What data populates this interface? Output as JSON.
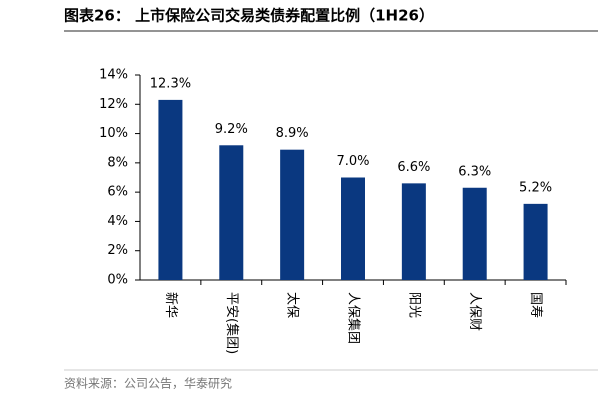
{
  "chart_data": {
    "type": "bar",
    "title": "图表26： 上市保险公司交易类债券配置比例（1H26）",
    "source": "资料来源：公司公告，华泰研究",
    "categories": [
      "新华",
      "平安(集团)",
      "太保",
      "人保集团",
      "阳光",
      "人保财",
      "国寿"
    ],
    "values": [
      12.3,
      9.2,
      8.9,
      7.0,
      6.6,
      6.3,
      5.2
    ],
    "value_labels": [
      "12.3%",
      "9.2%",
      "8.9%",
      "7.0%",
      "6.6%",
      "6.3%",
      "5.2%"
    ],
    "color": "#0a3880",
    "ylim": [
      0,
      14
    ],
    "yticks": [
      {
        "value": 0,
        "label": "0%"
      },
      {
        "value": 2,
        "label": "2%"
      },
      {
        "value": 4,
        "label": "4%"
      },
      {
        "value": 6,
        "label": "6%"
      },
      {
        "value": 8,
        "label": "8%"
      },
      {
        "value": 10,
        "label": "10%"
      },
      {
        "value": 12,
        "label": "12%"
      },
      {
        "value": 14,
        "label": "14%"
      }
    ],
    "grid": false
  }
}
